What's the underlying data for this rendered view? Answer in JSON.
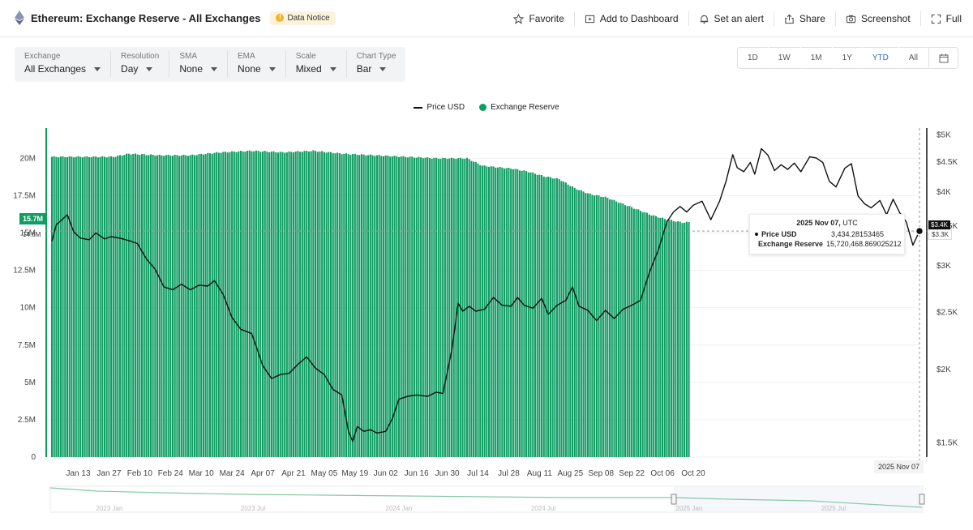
{
  "header": {
    "title": "Ethereum: Exchange Reserve - All Exchanges",
    "notice": "Data Notice",
    "actions": [
      {
        "label": "Favorite",
        "icon": "star-icon"
      },
      {
        "label": "Add to Dashboard",
        "icon": "dashboard-icon"
      },
      {
        "label": "Set an alert",
        "icon": "bell-icon"
      },
      {
        "label": "Share",
        "icon": "share-icon"
      },
      {
        "label": "Screenshot",
        "icon": "camera-icon"
      },
      {
        "label": "Full",
        "icon": "fullscreen-icon"
      }
    ]
  },
  "controls": [
    {
      "label": "Exchange",
      "value": "All Exchanges"
    },
    {
      "label": "Resolution",
      "value": "Day"
    },
    {
      "label": "SMA",
      "value": "None"
    },
    {
      "label": "EMA",
      "value": "None"
    },
    {
      "label": "Scale",
      "value": "Mixed"
    },
    {
      "label": "Chart Type",
      "value": "Bar"
    }
  ],
  "ranges": [
    "1D",
    "1W",
    "1M",
    "1Y",
    "YTD",
    "All"
  ],
  "active_range": "YTD",
  "colors": {
    "reserve": "#0f9d63",
    "price": "#111111",
    "accent": "#2b6cd8"
  },
  "tooltip": {
    "date": "2025 Nov 07",
    "tz": "UTC",
    "rows": [
      {
        "name": "Price USD",
        "value": "3,434.28153465"
      },
      {
        "name": "Exchange Reserve",
        "value": "15,720,468.869025212"
      }
    ]
  },
  "crosshair": {
    "date_label": "2025 Nov 07",
    "left_value": "15.7M",
    "left_secondary": "14.6M",
    "right_value": "$3.4K",
    "right_secondary": "$3.3K"
  },
  "chart_data": {
    "type": "bar+line",
    "title": "Ethereum: Exchange Reserve - All Exchanges",
    "legend": [
      "Price USD",
      "Exchange Reserve"
    ],
    "legend_position": "top-center",
    "x_ticks": [
      "Jan 13",
      "Jan 27",
      "Feb 10",
      "Feb 24",
      "Mar 10",
      "Mar 24",
      "Apr 07",
      "Apr 21",
      "May 05",
      "May 19",
      "Jun 02",
      "Jun 16",
      "Jun 30",
      "Jul 14",
      "Jul 28",
      "Aug 11",
      "Aug 25",
      "Sep 08",
      "Sep 22",
      "Oct 06",
      "Oct 20"
    ],
    "left_axis": {
      "label": "Exchange Reserve",
      "ticks": [
        "0",
        "2.5M",
        "5M",
        "7.5M",
        "10M",
        "12.5M",
        "15M",
        "17.5M",
        "20M"
      ],
      "ylim": [
        0,
        21700000
      ]
    },
    "right_axis": {
      "label": "Price USD",
      "scale": "log",
      "ticks": [
        "$1.5K",
        "$2K",
        "$2.5K",
        "$3K",
        "$3.5K",
        "$4K",
        "$4.5K",
        "$5K"
      ],
      "tick_values": [
        1500,
        2000,
        2500,
        3000,
        3500,
        4000,
        4500,
        5000
      ],
      "ylim": [
        1420,
        5040
      ]
    },
    "series": [
      {
        "name": "Exchange Reserve",
        "kind": "bar",
        "points": [
          [
            0,
            20.1
          ],
          [
            14,
            20.1
          ],
          [
            28,
            20.1
          ],
          [
            35,
            20.3
          ],
          [
            49,
            20.2
          ],
          [
            63,
            20.2
          ],
          [
            77,
            20.4
          ],
          [
            91,
            20.5
          ],
          [
            105,
            20.4
          ],
          [
            119,
            20.5
          ],
          [
            133,
            20.3
          ],
          [
            147,
            20.2
          ],
          [
            161,
            20.1
          ],
          [
            175,
            20.0
          ],
          [
            189,
            20.0
          ],
          [
            196,
            19.5
          ],
          [
            203,
            19.4
          ],
          [
            210,
            19.3
          ],
          [
            217,
            19.1
          ],
          [
            224,
            18.8
          ],
          [
            231,
            18.6
          ],
          [
            238,
            18.0
          ],
          [
            245,
            17.6
          ],
          [
            252,
            17.4
          ],
          [
            259,
            17.0
          ],
          [
            266,
            16.6
          ],
          [
            273,
            16.2
          ],
          [
            280,
            15.9
          ],
          [
            287,
            15.7
          ],
          [
            290,
            15.72
          ]
        ]
      },
      {
        "name": "Price USD",
        "kind": "line",
        "points": [
          [
            0,
            3300
          ],
          [
            2,
            3520
          ],
          [
            5,
            3600
          ],
          [
            7,
            3660
          ],
          [
            10,
            3420
          ],
          [
            13,
            3340
          ],
          [
            17,
            3320
          ],
          [
            20,
            3410
          ],
          [
            24,
            3330
          ],
          [
            27,
            3360
          ],
          [
            31,
            3340
          ],
          [
            35,
            3310
          ],
          [
            39,
            3270
          ],
          [
            43,
            3080
          ],
          [
            47,
            2960
          ],
          [
            51,
            2760
          ],
          [
            55,
            2730
          ],
          [
            59,
            2790
          ],
          [
            63,
            2730
          ],
          [
            67,
            2780
          ],
          [
            71,
            2770
          ],
          [
            74,
            2830
          ],
          [
            78,
            2680
          ],
          [
            82,
            2450
          ],
          [
            86,
            2340
          ],
          [
            91,
            2300
          ],
          [
            96,
            2030
          ],
          [
            100,
            1930
          ],
          [
            104,
            1960
          ],
          [
            108,
            1970
          ],
          [
            112,
            2040
          ],
          [
            116,
            2100
          ],
          [
            120,
            2010
          ],
          [
            124,
            1960
          ],
          [
            128,
            1850
          ],
          [
            132,
            1810
          ],
          [
            135,
            1570
          ],
          [
            137,
            1510
          ],
          [
            139,
            1600
          ],
          [
            142,
            1570
          ],
          [
            145,
            1580
          ],
          [
            148,
            1560
          ],
          [
            152,
            1570
          ],
          [
            155,
            1650
          ],
          [
            158,
            1780
          ],
          [
            162,
            1800
          ],
          [
            166,
            1810
          ],
          [
            171,
            1800
          ],
          [
            175,
            1830
          ],
          [
            178,
            1820
          ],
          [
            182,
            2150
          ],
          [
            185,
            2590
          ],
          [
            187,
            2510
          ],
          [
            190,
            2560
          ],
          [
            193,
            2510
          ],
          [
            197,
            2530
          ],
          [
            201,
            2650
          ],
          [
            205,
            2570
          ],
          [
            209,
            2560
          ],
          [
            212,
            2650
          ],
          [
            215,
            2570
          ],
          [
            219,
            2540
          ],
          [
            223,
            2640
          ],
          [
            226,
            2480
          ],
          [
            230,
            2570
          ],
          [
            234,
            2620
          ],
          [
            237,
            2760
          ],
          [
            240,
            2560
          ],
          [
            244,
            2520
          ],
          [
            248,
            2420
          ],
          [
            252,
            2520
          ],
          [
            256,
            2440
          ],
          [
            260,
            2530
          ],
          [
            264,
            2570
          ],
          [
            268,
            2620
          ],
          [
            272,
            2920
          ],
          [
            276,
            3180
          ],
          [
            280,
            3560
          ],
          [
            283,
            3700
          ],
          [
            286,
            3780
          ],
          [
            289,
            3700
          ],
          [
            292,
            3800
          ],
          [
            296,
            3860
          ],
          [
            300,
            3590
          ],
          [
            304,
            3860
          ],
          [
            307,
            4180
          ],
          [
            310,
            4630
          ],
          [
            312,
            4400
          ],
          [
            315,
            4330
          ],
          [
            318,
            4490
          ],
          [
            320,
            4290
          ],
          [
            323,
            4740
          ],
          [
            326,
            4620
          ],
          [
            329,
            4350
          ],
          [
            332,
            4450
          ],
          [
            335,
            4370
          ],
          [
            338,
            4480
          ],
          [
            341,
            4330
          ],
          [
            345,
            4590
          ],
          [
            348,
            4570
          ],
          [
            351,
            4490
          ],
          [
            354,
            4170
          ],
          [
            357,
            4080
          ],
          [
            361,
            4390
          ],
          [
            364,
            4470
          ],
          [
            367,
            3940
          ],
          [
            370,
            3820
          ],
          [
            373,
            3760
          ],
          [
            377,
            3870
          ],
          [
            380,
            3660
          ],
          [
            383,
            3890
          ],
          [
            386,
            3690
          ],
          [
            389,
            3560
          ],
          [
            392,
            3250
          ],
          [
            395,
            3434
          ]
        ]
      }
    ],
    "navigator": {
      "labels": [
        "2023 Jan",
        "2023 Jul",
        "2024 Jan",
        "2024 Jul",
        "2025 Jan",
        "2025 Jul"
      ]
    }
  }
}
